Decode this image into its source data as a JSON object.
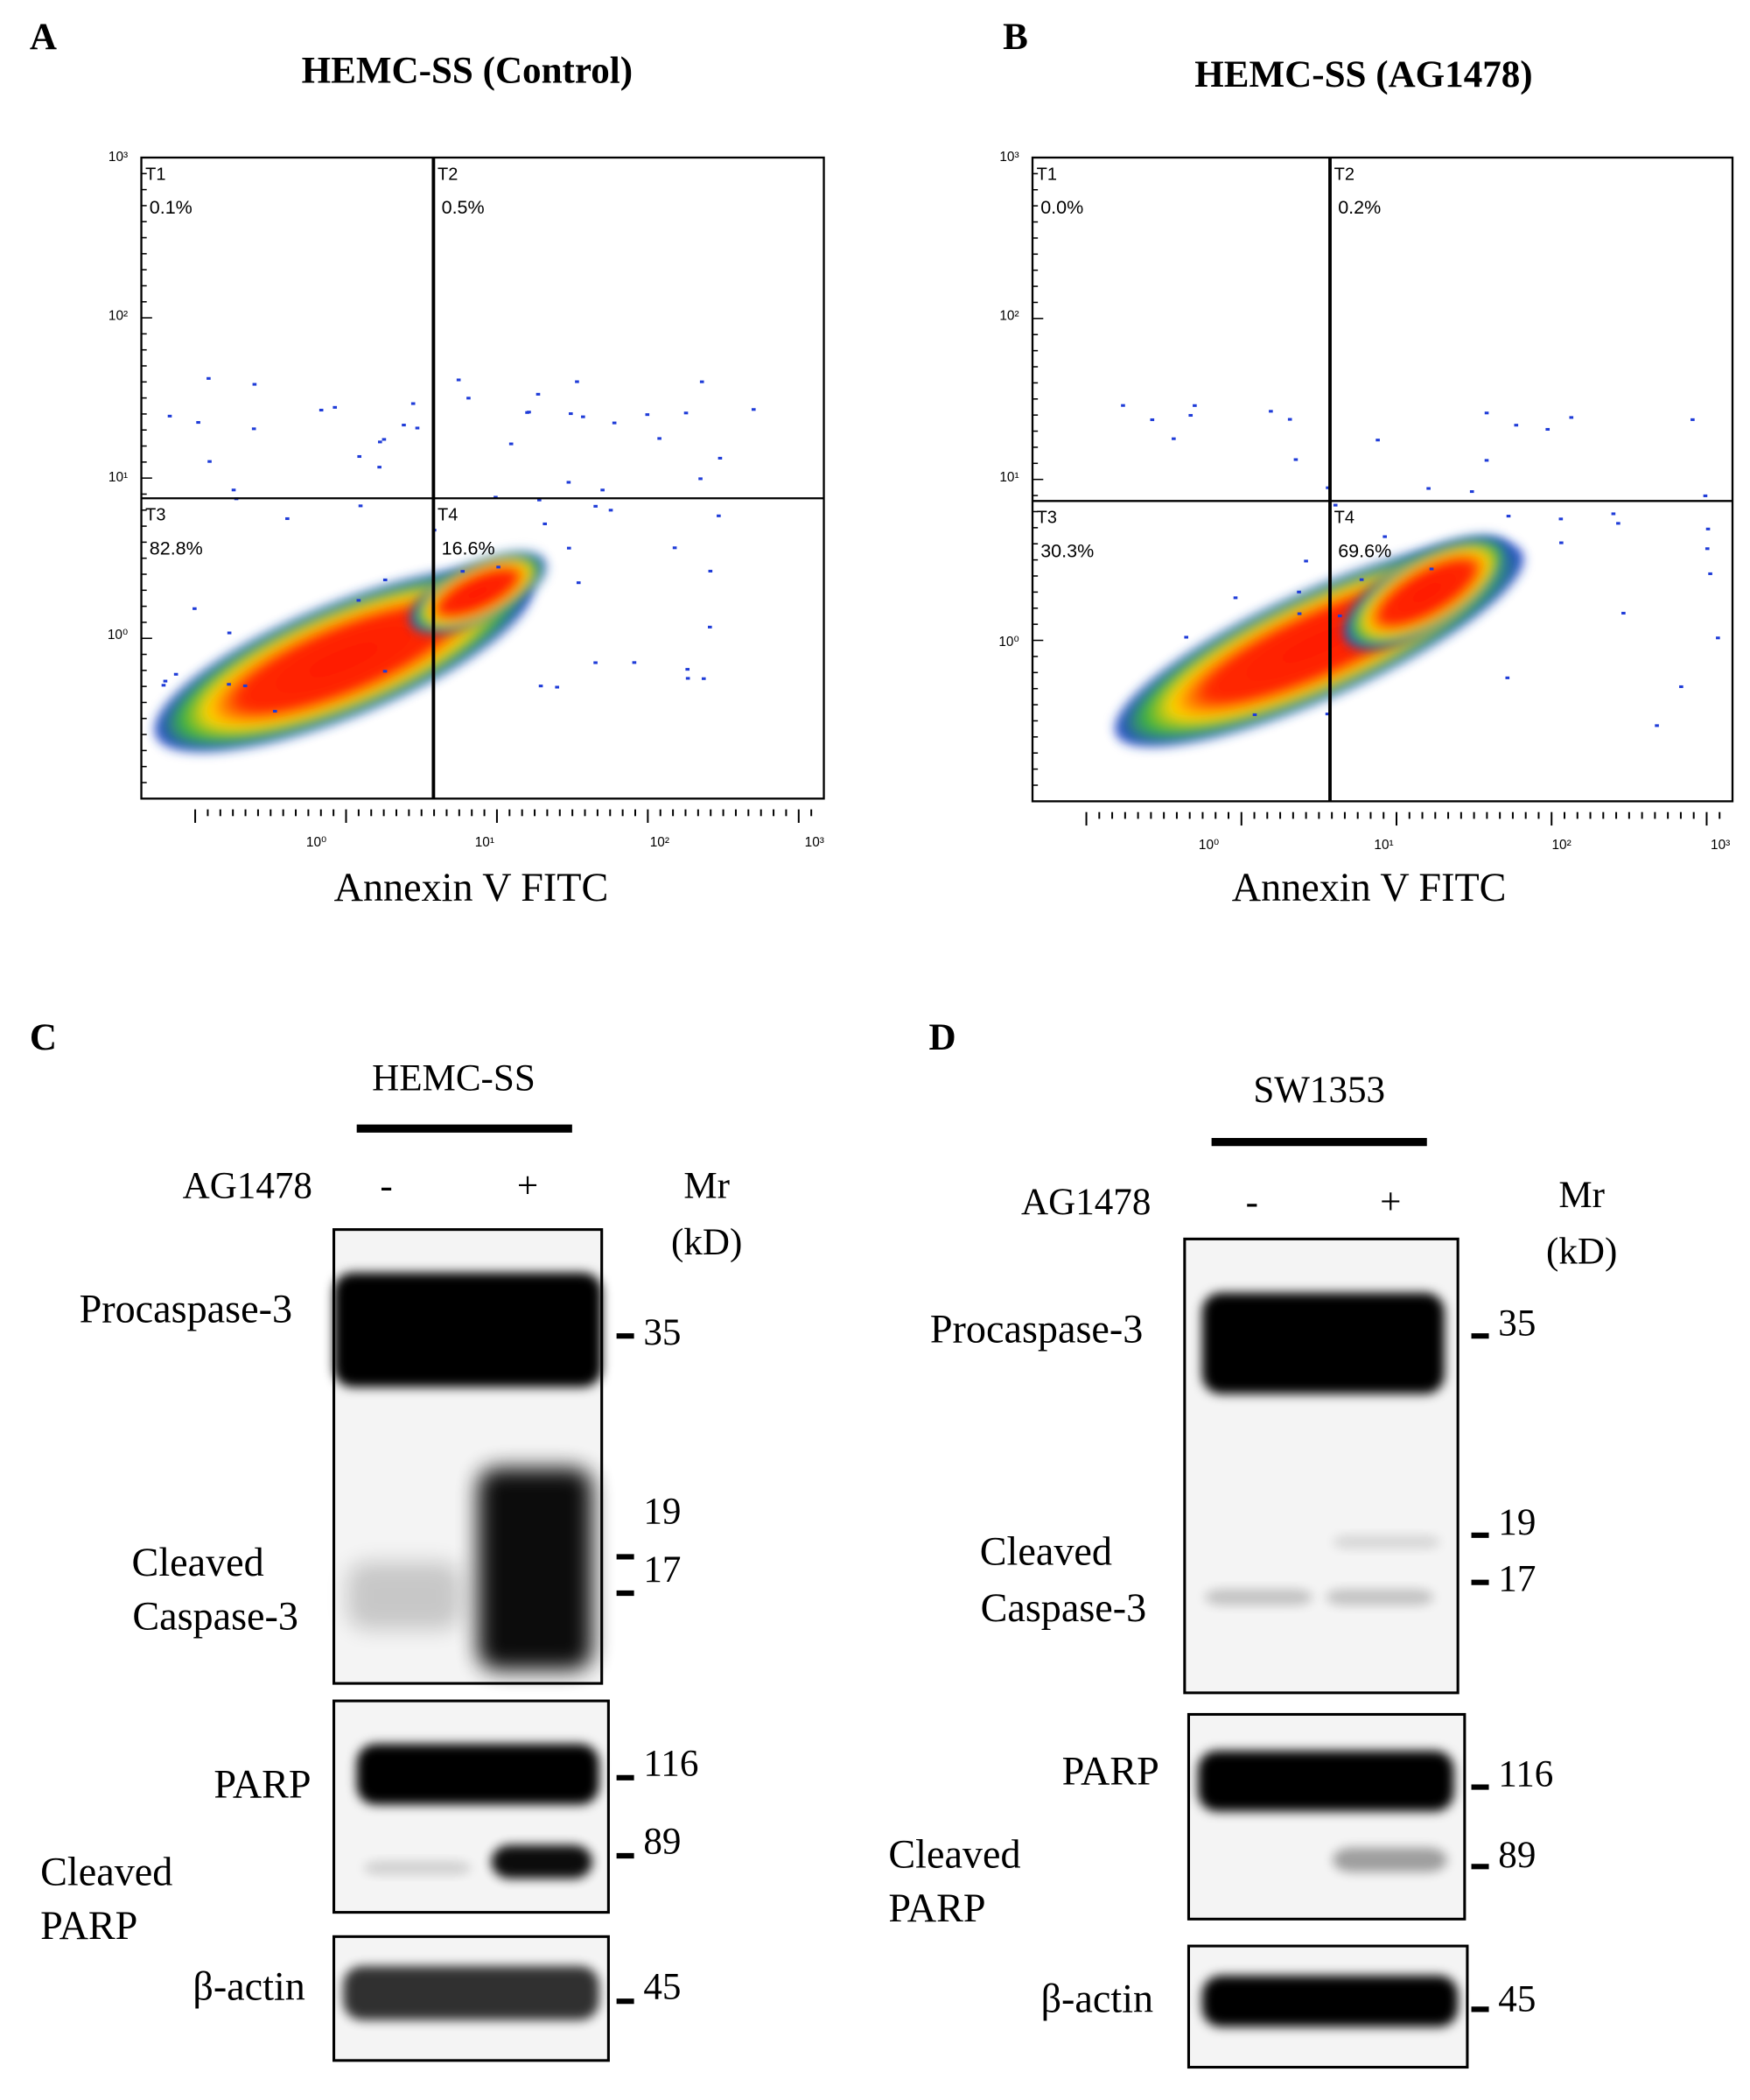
{
  "panels": [
    {
      "label": "A",
      "title": "HEMC-SS (Control)",
      "x_axis_label": "Annexin V FITC",
      "x_ticks": [
        "10⁰",
        "10¹",
        "10²",
        "10³"
      ],
      "y_ticks": [
        "10⁰",
        "10¹",
        "10²",
        "10³"
      ],
      "quadrants": [
        {
          "name": "T1",
          "percent": "0.1%"
        },
        {
          "name": "T2",
          "percent": "0.5%"
        },
        {
          "name": "T3",
          "percent": "82.8%"
        },
        {
          "name": "T4",
          "percent": "16.6%"
        }
      ]
    },
    {
      "label": "B",
      "title": "HEMC-SS (AG1478)",
      "x_axis_label": "Annexin V FITC",
      "x_ticks": [
        "10⁰",
        "10¹",
        "10²",
        "10³"
      ],
      "y_ticks": [
        "10⁰",
        "10¹",
        "10²",
        "10³"
      ],
      "quadrants": [
        {
          "name": "T1",
          "percent": "0.0%"
        },
        {
          "name": "T2",
          "percent": "0.2%"
        },
        {
          "name": "T3",
          "percent": "30.3%"
        },
        {
          "name": "T4",
          "percent": "69.6%"
        }
      ]
    }
  ],
  "blots": [
    {
      "label": "C",
      "cell_line": "HEMC-SS",
      "treatment": "AG1478",
      "lanes": [
        "-",
        "+"
      ],
      "mr_header": [
        "Mr",
        "(kD)"
      ],
      "row_labels": [
        "Procaspase-3",
        "Cleaved",
        "Caspase-3",
        "PARP",
        "Cleaved",
        "PARP",
        "β-actin"
      ],
      "markers": [
        35,
        19,
        17,
        116,
        89,
        45
      ]
    },
    {
      "label": "D",
      "cell_line": "SW1353",
      "treatment": "AG1478",
      "lanes": [
        "-",
        "+"
      ],
      "mr_header": [
        "Mr",
        "(kD)"
      ],
      "row_labels": [
        "Procaspase-3",
        "Cleaved",
        "Caspase-3",
        "PARP",
        "Cleaved",
        "PARP",
        "β-actin"
      ],
      "markers": [
        35,
        19,
        17,
        116,
        89,
        45
      ]
    }
  ]
}
